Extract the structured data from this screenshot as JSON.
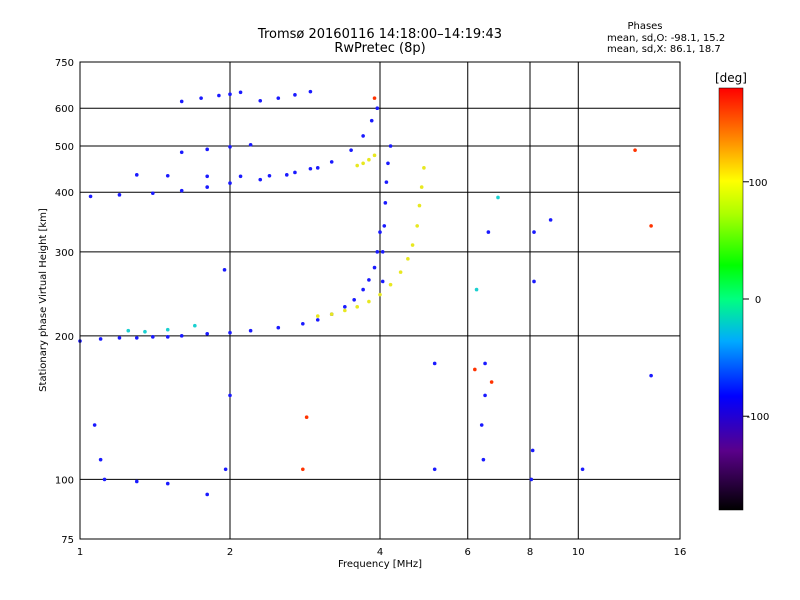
{
  "header": {
    "title_line1": "Tromsø 20160116 14:18:00–14:19:43",
    "title_line2": "RwPretec (8p)"
  },
  "phase_box": {
    "heading": "Phases",
    "line_o": "mean, sd,O: -98.1, 15.2",
    "line_x": "mean, sd,X: 86.1, 18.7"
  },
  "colors": {
    "grid": "#000000",
    "blue_trace": "#1a1aff",
    "yellow_trace": "#e8e820",
    "cyan_trace": "#1ad0d0"
  },
  "chart_data": {
    "type": "scatter",
    "title": "Tromsø 20160116 14:18:00–14:19:43",
    "subtitle": "RwPretec (8p)",
    "xlabel": "Frequency [MHz]",
    "ylabel": "Stationary phase Virtual Height [km]",
    "x_scale": "log",
    "y_scale": "log",
    "xlim": [
      1,
      16
    ],
    "ylim": [
      75,
      750
    ],
    "x_ticks": [
      1,
      2,
      4,
      6,
      8,
      10,
      16
    ],
    "x_tick_labels": [
      "1",
      "2",
      "4",
      "6",
      "8",
      "10",
      "16"
    ],
    "y_ticks": [
      75,
      100,
      200,
      300,
      400,
      500,
      600,
      750
    ],
    "y_tick_labels": [
      "75",
      "100",
      "200",
      "300",
      "400",
      "500",
      "600",
      "750"
    ],
    "x_gridlines": [
      2,
      4,
      6,
      8,
      10
    ],
    "y_gridlines": [
      100,
      200,
      300,
      400,
      500,
      600
    ],
    "grid": true,
    "colorbar": {
      "label": "[deg]",
      "range": [
        -180,
        180
      ],
      "ticks": [
        100,
        0,
        -100
      ],
      "tick_labels": [
        "100",
        "0",
        "-100"
      ]
    },
    "series": [
      {
        "points": [
          [
            1.0,
            195
          ],
          [
            1.1,
            197
          ],
          [
            1.2,
            198
          ],
          [
            1.3,
            198
          ],
          [
            1.4,
            199
          ],
          [
            1.5,
            199
          ],
          [
            1.6,
            200
          ],
          [
            1.8,
            202
          ],
          [
            2.0,
            203
          ],
          [
            2.2,
            205
          ],
          [
            2.5,
            208
          ],
          [
            2.8,
            212
          ],
          [
            3.0,
            216
          ],
          [
            3.2,
            222
          ],
          [
            3.4,
            230
          ],
          [
            3.55,
            238
          ],
          [
            3.7,
            250
          ],
          [
            3.8,
            262
          ],
          [
            3.9,
            278
          ],
          [
            3.95,
            300
          ],
          [
            4.0,
            330
          ]
        ],
        "color": "#1a1aff"
      },
      {
        "points": [
          [
            1.05,
            392
          ],
          [
            1.2,
            395
          ],
          [
            1.4,
            398
          ],
          [
            1.6,
            403
          ],
          [
            1.8,
            410
          ],
          [
            2.0,
            418
          ],
          [
            2.3,
            425
          ],
          [
            2.6,
            435
          ],
          [
            2.9,
            448
          ],
          [
            3.2,
            463
          ],
          [
            3.5,
            490
          ],
          [
            3.7,
            525
          ],
          [
            3.85,
            565
          ],
          [
            3.95,
            600
          ]
        ],
        "color": "#1a1aff"
      },
      {
        "points": [
          [
            1.3,
            435
          ],
          [
            1.5,
            433
          ],
          [
            1.8,
            432
          ],
          [
            2.1,
            432
          ],
          [
            2.4,
            433
          ],
          [
            2.7,
            440
          ],
          [
            3.0,
            450
          ]
        ],
        "color": "#1a1aff"
      },
      {
        "points": [
          [
            1.6,
            485
          ],
          [
            1.8,
            492
          ],
          [
            2.0,
            498
          ],
          [
            2.2,
            503
          ]
        ],
        "color": "#1a1aff"
      },
      {
        "points": [
          [
            1.6,
            620
          ],
          [
            1.75,
            630
          ],
          [
            1.9,
            638
          ],
          [
            2.0,
            642
          ],
          [
            2.1,
            648
          ],
          [
            2.3,
            622
          ],
          [
            2.5,
            630
          ],
          [
            2.7,
            640
          ],
          [
            2.9,
            650
          ]
        ],
        "color": "#1a1aff"
      },
      {
        "points": [
          [
            4.05,
            260
          ],
          [
            4.05,
            300
          ],
          [
            4.08,
            340
          ],
          [
            4.1,
            380
          ],
          [
            4.12,
            420
          ],
          [
            4.15,
            460
          ],
          [
            4.2,
            500
          ]
        ],
        "color": "#1a1aff"
      },
      {
        "points": [
          [
            3.0,
            220
          ],
          [
            3.2,
            222
          ],
          [
            3.4,
            226
          ],
          [
            3.6,
            230
          ],
          [
            3.8,
            236
          ],
          [
            4.0,
            244
          ],
          [
            4.2,
            256
          ],
          [
            4.4,
            272
          ],
          [
            4.55,
            290
          ],
          [
            4.65,
            310
          ],
          [
            4.75,
            340
          ],
          [
            4.8,
            375
          ],
          [
            4.85,
            410
          ],
          [
            4.9,
            450
          ]
        ],
        "color": "#e8e820"
      },
      {
        "points": [
          [
            3.6,
            455
          ],
          [
            3.7,
            460
          ],
          [
            3.8,
            468
          ],
          [
            3.9,
            478
          ]
        ],
        "color": "#e8e820"
      },
      {
        "points": [
          [
            1.07,
            130
          ],
          [
            1.1,
            110
          ],
          [
            1.12,
            100
          ],
          [
            1.3,
            99
          ],
          [
            1.5,
            98
          ],
          [
            1.8,
            93
          ],
          [
            1.96,
            105
          ],
          [
            2.0,
            150
          ],
          [
            1.95,
            275
          ],
          [
            5.15,
            105
          ],
          [
            5.15,
            175
          ],
          [
            6.4,
            130
          ],
          [
            6.45,
            110
          ],
          [
            6.5,
            150
          ],
          [
            6.5,
            175
          ],
          [
            6.6,
            330
          ],
          [
            8.05,
            100
          ],
          [
            8.1,
            115
          ],
          [
            8.15,
            260
          ],
          [
            8.15,
            330
          ],
          [
            8.8,
            350
          ],
          [
            10.2,
            105
          ],
          [
            14.0,
            165
          ]
        ],
        "color": "#1a1aff"
      },
      {
        "points": [
          [
            2.8,
            105
          ],
          [
            2.85,
            135
          ],
          [
            6.2,
            170
          ],
          [
            6.7,
            160
          ],
          [
            13.0,
            490
          ],
          [
            14.0,
            340
          ],
          [
            3.9,
            630
          ]
        ],
        "color": "#ff3300"
      },
      {
        "points": [
          [
            1.25,
            205
          ],
          [
            1.35,
            204
          ],
          [
            1.5,
            206
          ],
          [
            1.7,
            210
          ],
          [
            6.9,
            390
          ],
          [
            6.25,
            250
          ]
        ],
        "color": "#1ad0d0"
      }
    ]
  }
}
